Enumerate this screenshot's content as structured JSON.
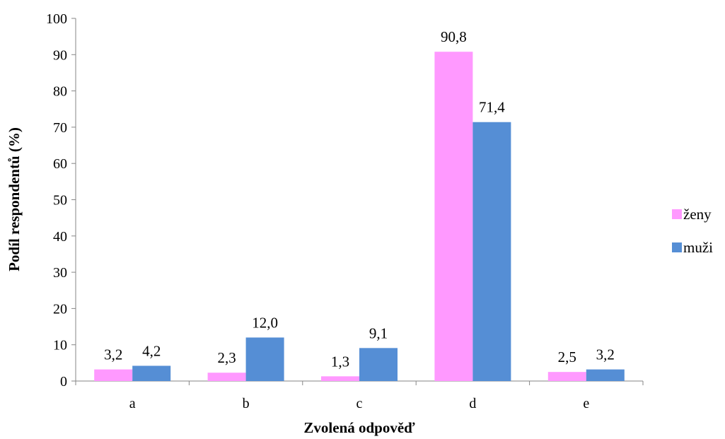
{
  "chart_data": {
    "type": "bar",
    "categories": [
      "a",
      "b",
      "c",
      "d",
      "e"
    ],
    "series": [
      {
        "name": "ženy",
        "color": "#FF99FF",
        "values": [
          3.2,
          2.3,
          1.3,
          90.8,
          2.5
        ],
        "labels": [
          "3,2",
          "2,3",
          "1,3",
          "90,8",
          "2,5"
        ]
      },
      {
        "name": "muži",
        "color": "#558ED5",
        "values": [
          4.2,
          12.0,
          9.1,
          71.4,
          3.2
        ],
        "labels": [
          "4,2",
          "12,0",
          "9,1",
          "71,4",
          "3,2"
        ]
      }
    ],
    "xlabel": "Zvolená odpověď",
    "ylabel": "Podíl respondentů (%)",
    "ylim": [
      0,
      100
    ],
    "yticks": [
      0,
      10,
      20,
      30,
      40,
      50,
      60,
      70,
      80,
      90,
      100
    ],
    "grid": false,
    "legend": "right"
  }
}
